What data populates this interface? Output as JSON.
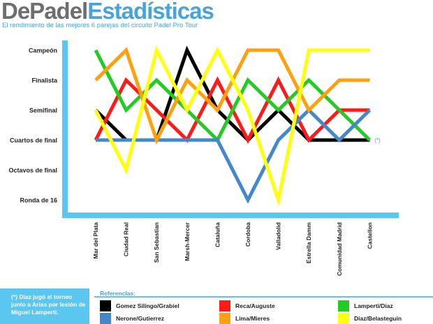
{
  "header": {
    "brand_part1": "DePadel",
    "brand_part2": "Estadísticas",
    "subtitle": "El rendimiento de las mejores 6 parejas del circuito Padel Pro Tour"
  },
  "colors": {
    "accent": "#5bc6ef",
    "brand_gray": "#6e6e6e",
    "brand_blue": "#4aa3d8"
  },
  "chart_data": {
    "type": "line",
    "title": "",
    "xlabel": "",
    "ylabel": "",
    "categories": [
      "Mar del Plata",
      "Ciudad Real",
      "San Sebastian",
      "Marsh-Mercer",
      "Cataluña",
      "Cordoba",
      "Valladolid",
      "Estrella Damm",
      "Comunidad Madrid",
      "Castellon"
    ],
    "y_levels": [
      "Ronda de 16",
      "Octavos de final",
      "Cuartos de final",
      "Semifinal",
      "Finalista",
      "Campeón"
    ],
    "annotations": [
      {
        "text": "(*)",
        "category": "Castellon",
        "level": "Cuartos de final"
      }
    ],
    "series": [
      {
        "name": "Gomez Silingo/Grabiel",
        "color": "#000000",
        "values": [
          "Semifinal",
          "Cuartos de final",
          "Cuartos de final",
          "Campeón",
          "Semifinal",
          "Cuartos de final",
          "Semifinal",
          "Cuartos de final",
          "Cuartos de final",
          "Cuartos de final"
        ]
      },
      {
        "name": "Reca/Auguste",
        "color": "#ff1a1a",
        "values": [
          "Cuartos de final",
          "Finalista",
          "Semifinal",
          "Cuartos de final",
          "Finalista",
          "Cuartos de final",
          "Finalista",
          "Cuartos de final",
          "Semifinal",
          "Semifinal"
        ]
      },
      {
        "name": "Lamperti/Diaz",
        "color": "#22cc22",
        "values": [
          "Campeón",
          "Semifinal",
          "Finalista",
          "Semifinal",
          "Cuartos de final",
          "Finalista",
          "Semifinal",
          "Finalista",
          "Semifinal",
          "Cuartos de final"
        ]
      },
      {
        "name": "Nerone/Gutierrez",
        "color": "#4488cc",
        "values": [
          "Cuartos de final",
          "Cuartos de final",
          "Cuartos de final",
          "Cuartos de final",
          "Cuartos de final",
          "Ronda de 16",
          "Cuartos de final",
          "Semifinal",
          "Cuartos de final",
          "Semifinal"
        ]
      },
      {
        "name": "Lima/Mieres",
        "color": "#ffa010",
        "values": [
          "Finalista",
          "Campeón",
          "Cuartos de final",
          "Finalista",
          "Semifinal",
          "Campeón",
          "Campeón",
          "Semifinal",
          "Finalista",
          "Finalista"
        ]
      },
      {
        "name": "Diaz/Belasteguin",
        "color": "#ffff10",
        "values": [
          "Semifinal",
          "Octavos de final",
          "Campeón",
          "Semifinal",
          "Campeón",
          "Semifinal",
          "Ronda de 16",
          "Campeón",
          "Campeón",
          "Campeón"
        ]
      }
    ]
  },
  "note": "(*) Diaz jugó el torneo junto a Arias por lesión de Miguel Lamperti.",
  "legend": {
    "title": "Referencias:"
  }
}
